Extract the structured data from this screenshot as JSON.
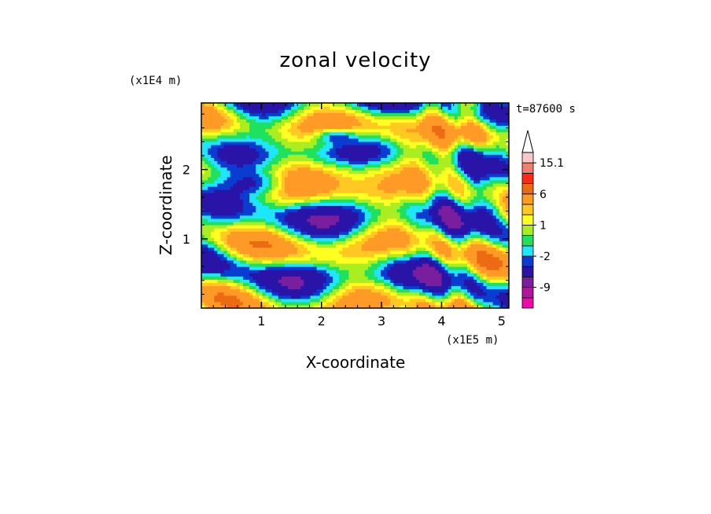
{
  "chart_data": {
    "type": "heatmap",
    "title": "zonal velocity",
    "time_label": "t=87600 s",
    "xlabel": "X-coordinate",
    "ylabel": "Z-coordinate",
    "x_scale_label": "(x1E5 m)",
    "y_scale_label": "(x1E4 m)",
    "xlim": [
      0,
      5.12
    ],
    "ylim": [
      0,
      2.96
    ],
    "x_ticks": [
      "1",
      "2",
      "3",
      "4",
      "5"
    ],
    "y_ticks": [
      "1",
      "2"
    ],
    "x_tick_values": [
      1,
      2,
      3,
      4,
      5
    ],
    "y_tick_values": [
      1,
      2
    ],
    "colorbar": {
      "labels": [
        "15.1",
        "6",
        "1",
        "-2",
        "-9"
      ],
      "label_values": [
        15.1,
        6,
        1,
        -2,
        -9
      ],
      "levels": [
        -16,
        -12,
        -9,
        -6,
        -3,
        -2,
        -1,
        0,
        1,
        2,
        3,
        6,
        9,
        12,
        15.1
      ],
      "colors": [
        "#ee0aa8",
        "#b4139e",
        "#7a1e9e",
        "#2a14a8",
        "#0a3cd2",
        "#1ee6ff",
        "#20e060",
        "#aaee22",
        "#ffff22",
        "#ffc822",
        "#ff9a26",
        "#ee6a12",
        "#ff2a14",
        "#f08070",
        "#f8c8c8"
      ],
      "extend_max": true
    },
    "field_description": "banded wavy contour field of zonal velocity, dominated by green/yellow/orange with blue and cyan bands"
  }
}
